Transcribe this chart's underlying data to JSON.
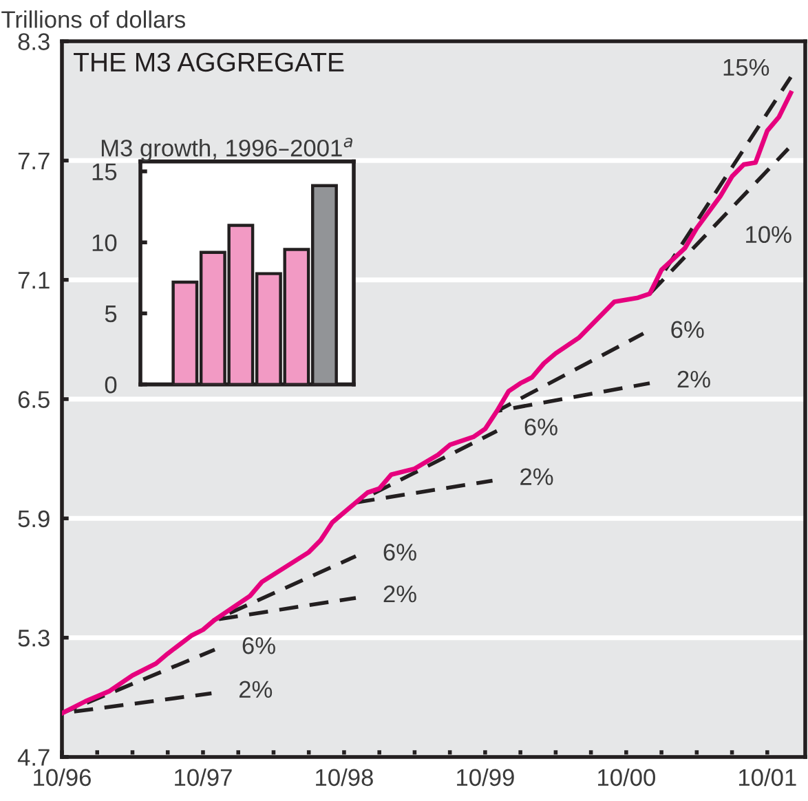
{
  "chart_data": [
    {
      "type": "line",
      "title": "THE M3 AGGREGATE",
      "ylabel": "Trillions of dollars",
      "xlim": [
        "1996-10",
        "2002-01-08"
      ],
      "ylim": [
        4.7,
        8.3
      ],
      "yticks": [
        4.7,
        5.3,
        5.9,
        6.5,
        7.1,
        7.7,
        8.3
      ],
      "xticks": [
        {
          "value": "1996-10",
          "label": "10/96"
        },
        {
          "value": "1997-01",
          "label": null
        },
        {
          "value": "1997-04",
          "label": null
        },
        {
          "value": "1997-07",
          "label": null
        },
        {
          "value": "1997-10",
          "label": "10/97"
        },
        {
          "value": "1998-01",
          "label": null
        },
        {
          "value": "1998-04",
          "label": null
        },
        {
          "value": "1998-07",
          "label": null
        },
        {
          "value": "1998-10",
          "label": "10/98"
        },
        {
          "value": "1999-01",
          "label": null
        },
        {
          "value": "1999-04",
          "label": null
        },
        {
          "value": "1999-07",
          "label": null
        },
        {
          "value": "1999-10",
          "label": "10/99"
        },
        {
          "value": "2000-01",
          "label": null
        },
        {
          "value": "2000-04",
          "label": null
        },
        {
          "value": "2000-07",
          "label": null
        },
        {
          "value": "2000-10",
          "label": "10/00"
        },
        {
          "value": "2001-01",
          "label": null
        },
        {
          "value": "2001-04",
          "label": null
        },
        {
          "value": "2001-07",
          "label": null
        },
        {
          "value": "2001-10",
          "label": "10/01"
        }
      ],
      "grid": "y",
      "series": [
        {
          "type": "line",
          "color": "#e6007e",
          "line_style": "solid",
          "x": [
            "1996-10",
            "1996-12",
            "1997-02",
            "1997-04",
            "1997-06",
            "1997-07",
            "1997-09",
            "1997-10",
            "1997-11",
            "1998-02",
            "1998-03",
            "1998-07",
            "1998-08",
            "1998-09",
            "1998-11",
            "1998-12",
            "1999-01",
            "1999-02",
            "1999-04",
            "1999-06",
            "1999-07",
            "1999-09",
            "1999-10",
            "1999-11",
            "1999-12",
            "2000-01",
            "2000-02",
            "2000-03",
            "2000-04",
            "2000-05",
            "2000-06",
            "2000-09",
            "2000-11",
            "2000-12",
            "2001-01",
            "2001-03",
            "2001-04",
            "2001-06",
            "2001-07",
            "2001-08",
            "2001-09",
            "2001-10",
            "2001-11",
            "2001-12"
          ],
          "values": [
            4.92,
            4.98,
            5.03,
            5.11,
            5.17,
            5.22,
            5.31,
            5.34,
            5.39,
            5.51,
            5.58,
            5.73,
            5.79,
            5.88,
            5.98,
            6.03,
            6.05,
            6.12,
            6.15,
            6.22,
            6.27,
            6.31,
            6.35,
            6.44,
            6.54,
            6.58,
            6.61,
            6.68,
            6.73,
            6.77,
            6.81,
            6.99,
            7.01,
            7.03,
            7.15,
            7.26,
            7.36,
            7.52,
            7.62,
            7.68,
            7.69,
            7.85,
            7.92,
            8.04
          ]
        },
        {
          "type": "line",
          "color": "#231f20",
          "line_style": "dashed",
          "x": [
            "1996-10",
            "1997-10-23"
          ],
          "values": [
            4.92,
            5.02
          ]
        },
        {
          "type": "line",
          "color": "#231f20",
          "line_style": "dashed",
          "x": [
            "1996-10",
            "1997-11"
          ],
          "values": [
            4.92,
            5.24
          ]
        },
        {
          "type": "line",
          "color": "#231f20",
          "line_style": "dashed",
          "x": [
            "1997-11",
            "1998-11"
          ],
          "values": [
            5.39,
            5.5
          ]
        },
        {
          "type": "line",
          "color": "#231f20",
          "line_style": "dashed",
          "x": [
            "1997-11",
            "1998-11"
          ],
          "values": [
            5.39,
            5.71
          ]
        },
        {
          "type": "line",
          "color": "#231f20",
          "line_style": "dashed",
          "x": [
            "1998-11",
            "1999-10-20"
          ],
          "values": [
            5.98,
            6.09
          ]
        },
        {
          "type": "line",
          "color": "#231f20",
          "line_style": "dashed",
          "x": [
            "1998-11",
            "1999-11"
          ],
          "values": [
            5.98,
            6.34
          ]
        },
        {
          "type": "line",
          "color": "#231f20",
          "line_style": "dashed",
          "x": [
            "1999-11",
            "2000-12"
          ],
          "values": [
            6.44,
            6.58
          ]
        },
        {
          "type": "line",
          "color": "#231f20",
          "line_style": "dashed",
          "x": [
            "1999-11",
            "2000-11-15"
          ],
          "values": [
            6.44,
            6.83
          ]
        },
        {
          "type": "line",
          "color": "#231f20",
          "line_style": "dashed",
          "x": [
            "2000-12",
            "2001-11-25"
          ],
          "values": [
            7.03,
            7.76
          ]
        },
        {
          "type": "line",
          "color": "#231f20",
          "line_style": "dashed",
          "x": [
            "2000-12",
            "2001-12"
          ],
          "values": [
            7.03,
            8.12
          ]
        }
      ],
      "annotations": [
        "2%",
        "6%",
        "2%",
        "6%",
        "2%",
        "6%",
        "2%",
        "6%",
        "10%",
        "15%"
      ]
    },
    {
      "type": "bar",
      "title": "M3 growth, 1996–2001$^{a}$",
      "categories": [
        null,
        null,
        null,
        null,
        null,
        null
      ],
      "values": [
        7.2,
        9.3,
        11.2,
        7.8,
        9.5,
        14.0
      ],
      "colors": [
        "#f29ac4",
        "#f29ac4",
        "#f29ac4",
        "#f29ac4",
        "#f29ac4",
        "#929497"
      ],
      "ylim": [
        0,
        15.7
      ],
      "yticks": [
        0,
        5,
        10,
        15
      ],
      "tick_labels": "y"
    }
  ]
}
